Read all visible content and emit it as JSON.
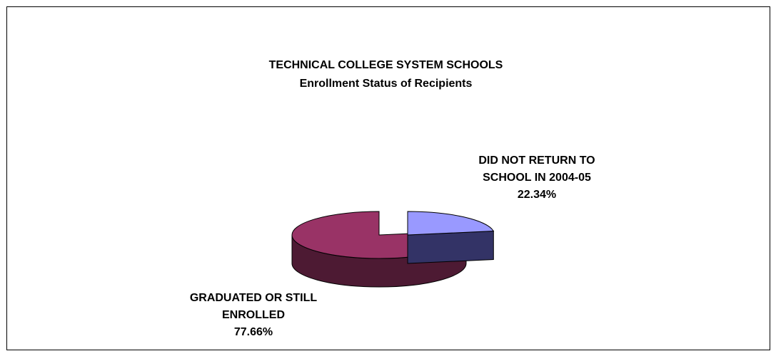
{
  "chart_data": {
    "type": "pie",
    "style": "3d-exploded",
    "title": "TECHNICAL COLLEGE SYSTEM SCHOOLS",
    "subtitle": "Enrollment Status of Recipients",
    "slices": [
      {
        "label_lines": [
          "DID NOT RETURN TO",
          "SCHOOL IN 2004-05"
        ],
        "value": 22.34,
        "value_label": "22.34%",
        "top_color": "#9999FF",
        "side_color": "#333366"
      },
      {
        "label_lines": [
          "GRADUATED OR STILL",
          "ENROLLED"
        ],
        "value": 77.66,
        "value_label": "77.66%",
        "top_color": "#993366",
        "side_color": "#4D1A33"
      }
    ],
    "legend": "none",
    "data_labels": "outside"
  }
}
